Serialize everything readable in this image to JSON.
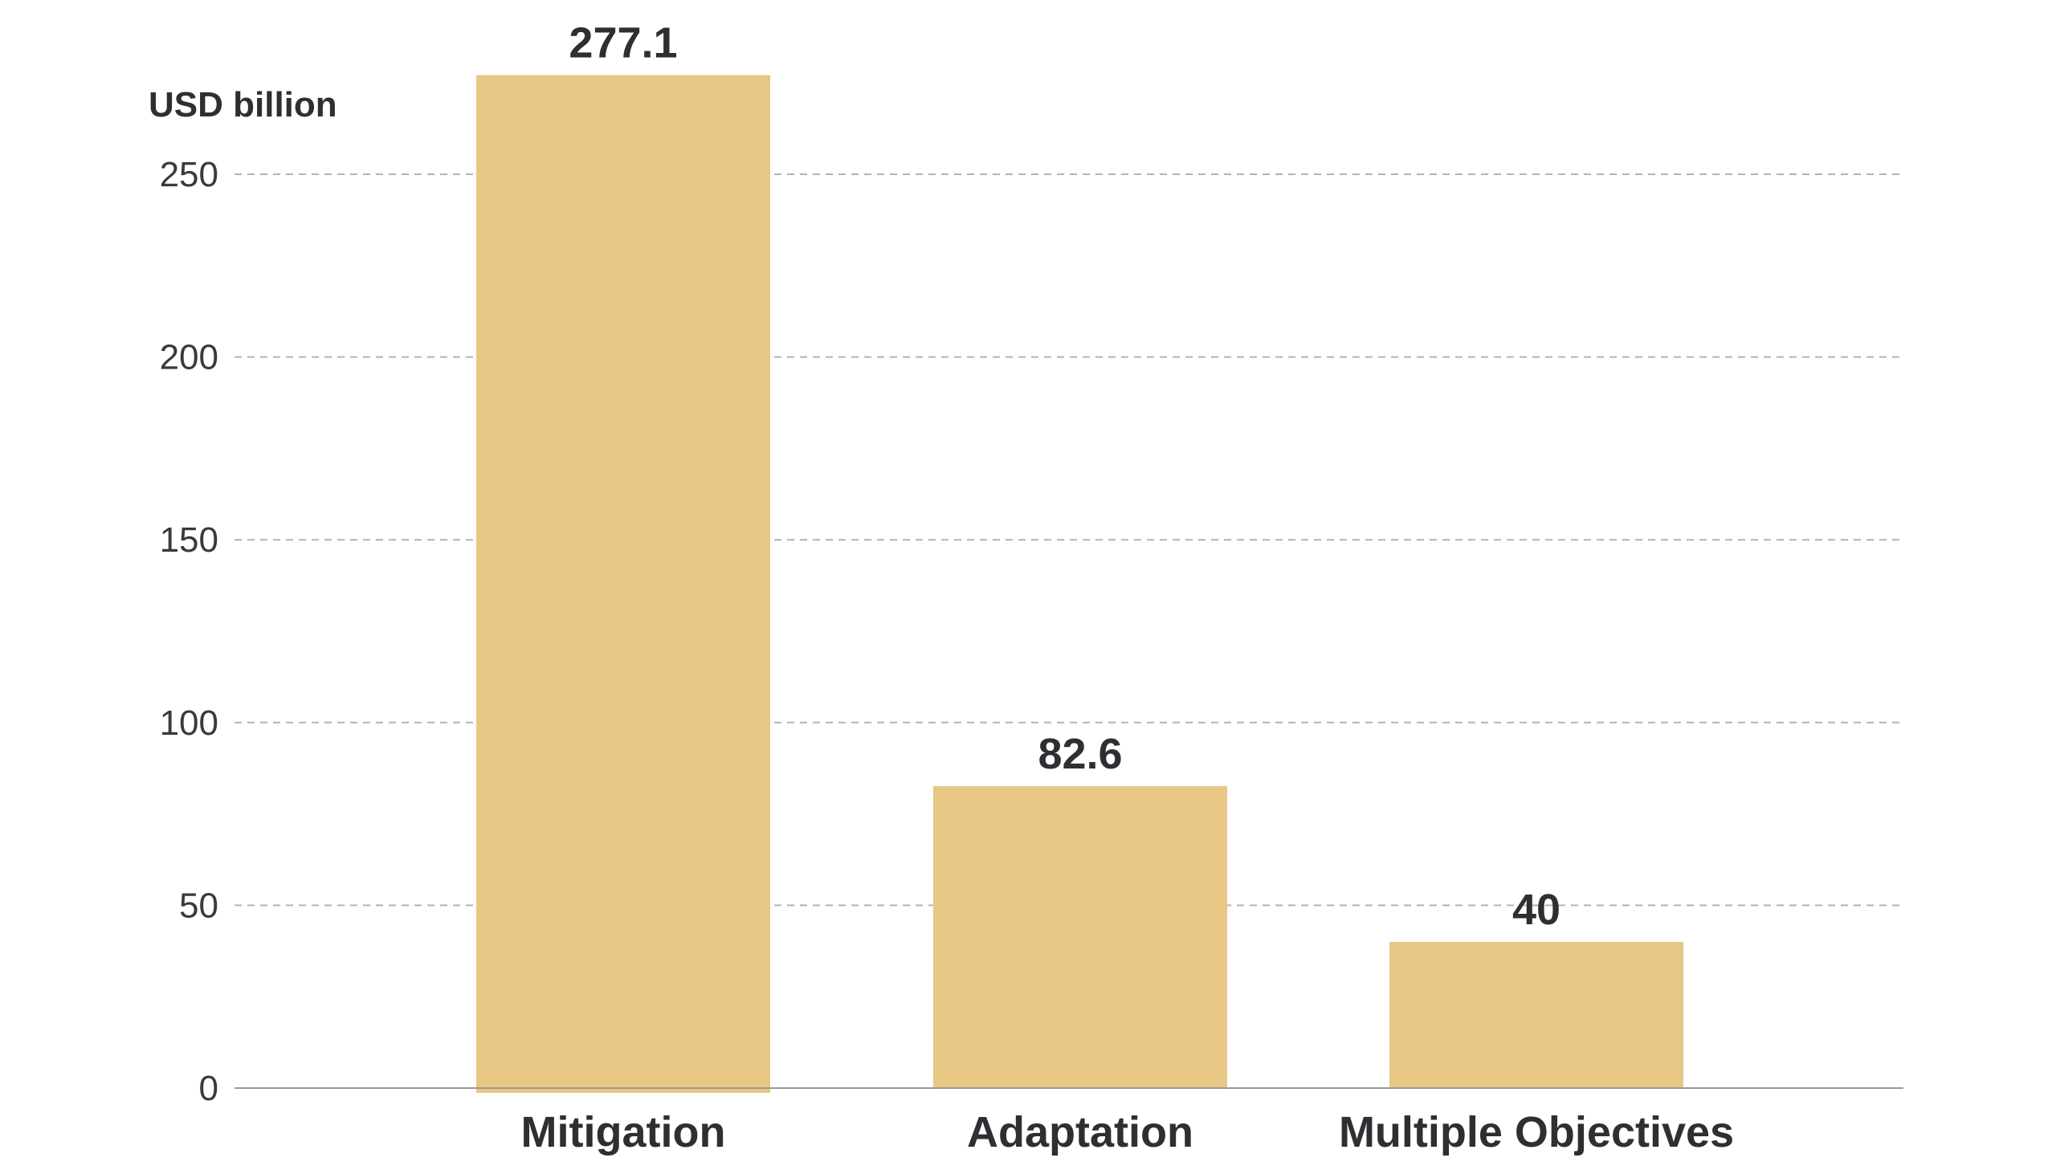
{
  "chart_data": {
    "type": "bar",
    "ylabel": "USD billion",
    "categories": [
      "Mitigation",
      "Adaptation",
      "Multiple Objectives"
    ],
    "values": [
      277.1,
      82.6,
      40
    ],
    "value_labels": [
      "277.1",
      "82.6",
      "40"
    ],
    "ylim": [
      0,
      250
    ],
    "yticks": [
      0,
      50,
      100,
      150,
      200,
      250
    ],
    "ytick_labels": [
      "0",
      "50",
      "100",
      "150",
      "200",
      "250"
    ],
    "grid": "horizontal-dashed",
    "bar_color": "#E8C683"
  }
}
